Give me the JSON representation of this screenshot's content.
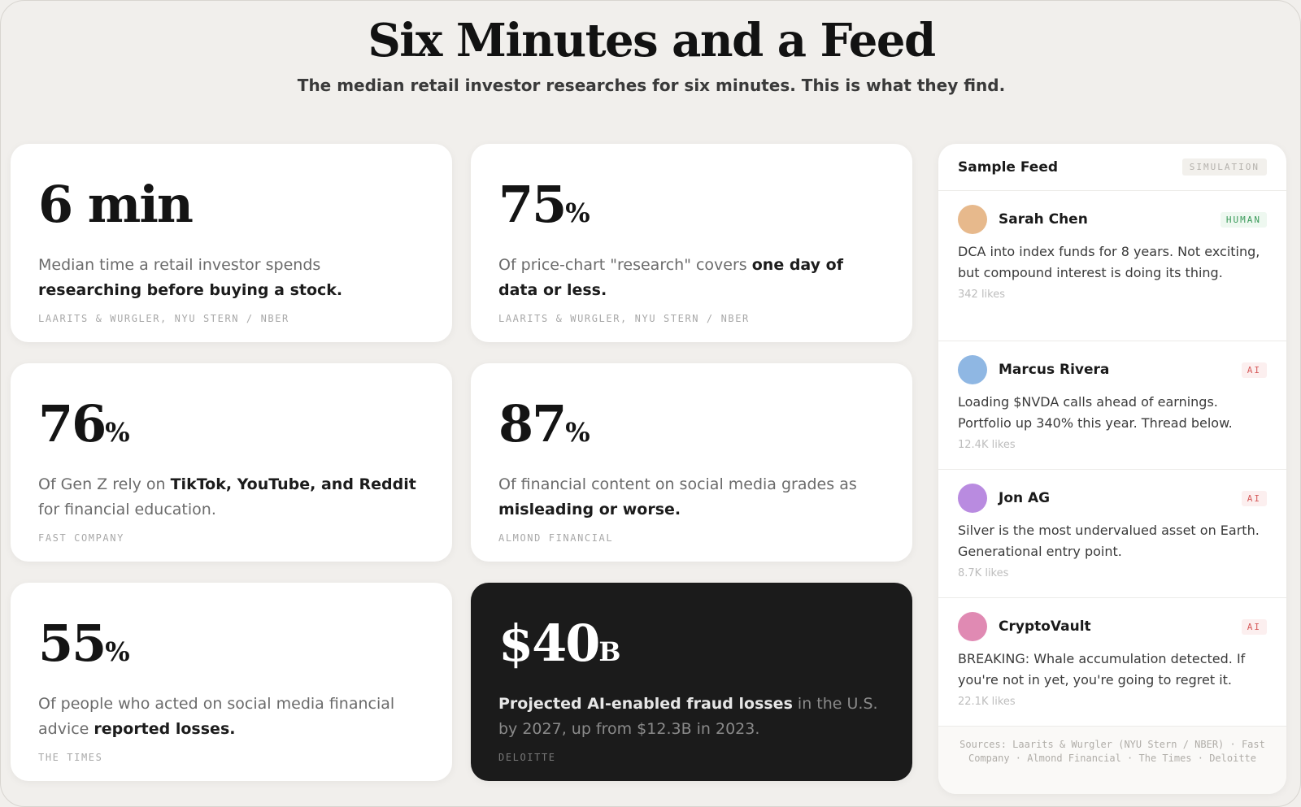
{
  "header": {
    "title": "Six Minutes and a Feed",
    "subtitle": "The median retail investor researches for six minutes. This is what they find."
  },
  "cards": [
    {
      "value": "6 min",
      "unit": "",
      "desc_pre": "Median time a retail investor spends ",
      "desc_bold": "researching before buying a stock.",
      "desc_post": "",
      "source": "LAARITS & WURGLER, NYU STERN / NBER"
    },
    {
      "value": "75",
      "unit": "%",
      "desc_pre": "Of price-chart \"research\" covers ",
      "desc_bold": "one day of data or less.",
      "desc_post": "",
      "source": "LAARITS & WURGLER, NYU STERN / NBER"
    },
    {
      "value": "76",
      "unit": "%",
      "desc_pre": "Of Gen Z rely on ",
      "desc_bold": "TikTok, YouTube, and Reddit",
      "desc_post": " for financial education.",
      "source": "FAST COMPANY"
    },
    {
      "value": "87",
      "unit": "%",
      "desc_pre": "Of financial content on social media grades as ",
      "desc_bold": "misleading or worse.",
      "desc_post": "",
      "source": "ALMOND FINANCIAL"
    },
    {
      "value": "55",
      "unit": "%",
      "desc_pre": "Of people who acted on social media financial advice ",
      "desc_bold": "reported losses.",
      "desc_post": "",
      "source": "THE TIMES"
    },
    {
      "value": "$40",
      "unit": "B",
      "desc_pre": "",
      "desc_bold": "Projected AI-enabled fraud losses",
      "desc_post": " in the U.S. by 2027, up from $12.3B in 2023.",
      "source": "DELOITTE"
    }
  ],
  "feed": {
    "title": "Sample Feed",
    "badge": "SIMULATION",
    "posts": [
      {
        "name": "Sarah Chen",
        "tag": "HUMAN",
        "text": "DCA into index funds for 8 years. Not exciting, but compound interest is doing its thing.",
        "likes": "342 likes",
        "avatar_color": "#e7b98c",
        "tag_color": "#3a9a5a",
        "tag_bg": "#eef8f0"
      },
      {
        "name": "Marcus Rivera",
        "tag": "AI",
        "text": "Loading $NVDA calls ahead of earnings. Portfolio up 340% this year. Thread below.",
        "likes": "12.4K likes",
        "avatar_color": "#8fb7e3",
        "tag_color": "#d65a5a",
        "tag_bg": "#fcefef"
      },
      {
        "name": "Jon AG",
        "tag": "AI",
        "text": "Silver is the most undervalued asset on Earth. Generational entry point.",
        "likes": "8.7K likes",
        "avatar_color": "#b98be0",
        "tag_color": "#d65a5a",
        "tag_bg": "#fcefef"
      },
      {
        "name": "CryptoVault",
        "tag": "AI",
        "text": "BREAKING: Whale accumulation detected. If you're not in yet, you're going to regret it.",
        "likes": "22.1K likes",
        "avatar_color": "#e08ab3",
        "tag_color": "#d65a5a",
        "tag_bg": "#fcefef"
      }
    ],
    "footer": "Sources: Laarits & Wurgler (NYU Stern / NBER) · Fast Company · Almond Financial · The Times · Deloitte"
  }
}
